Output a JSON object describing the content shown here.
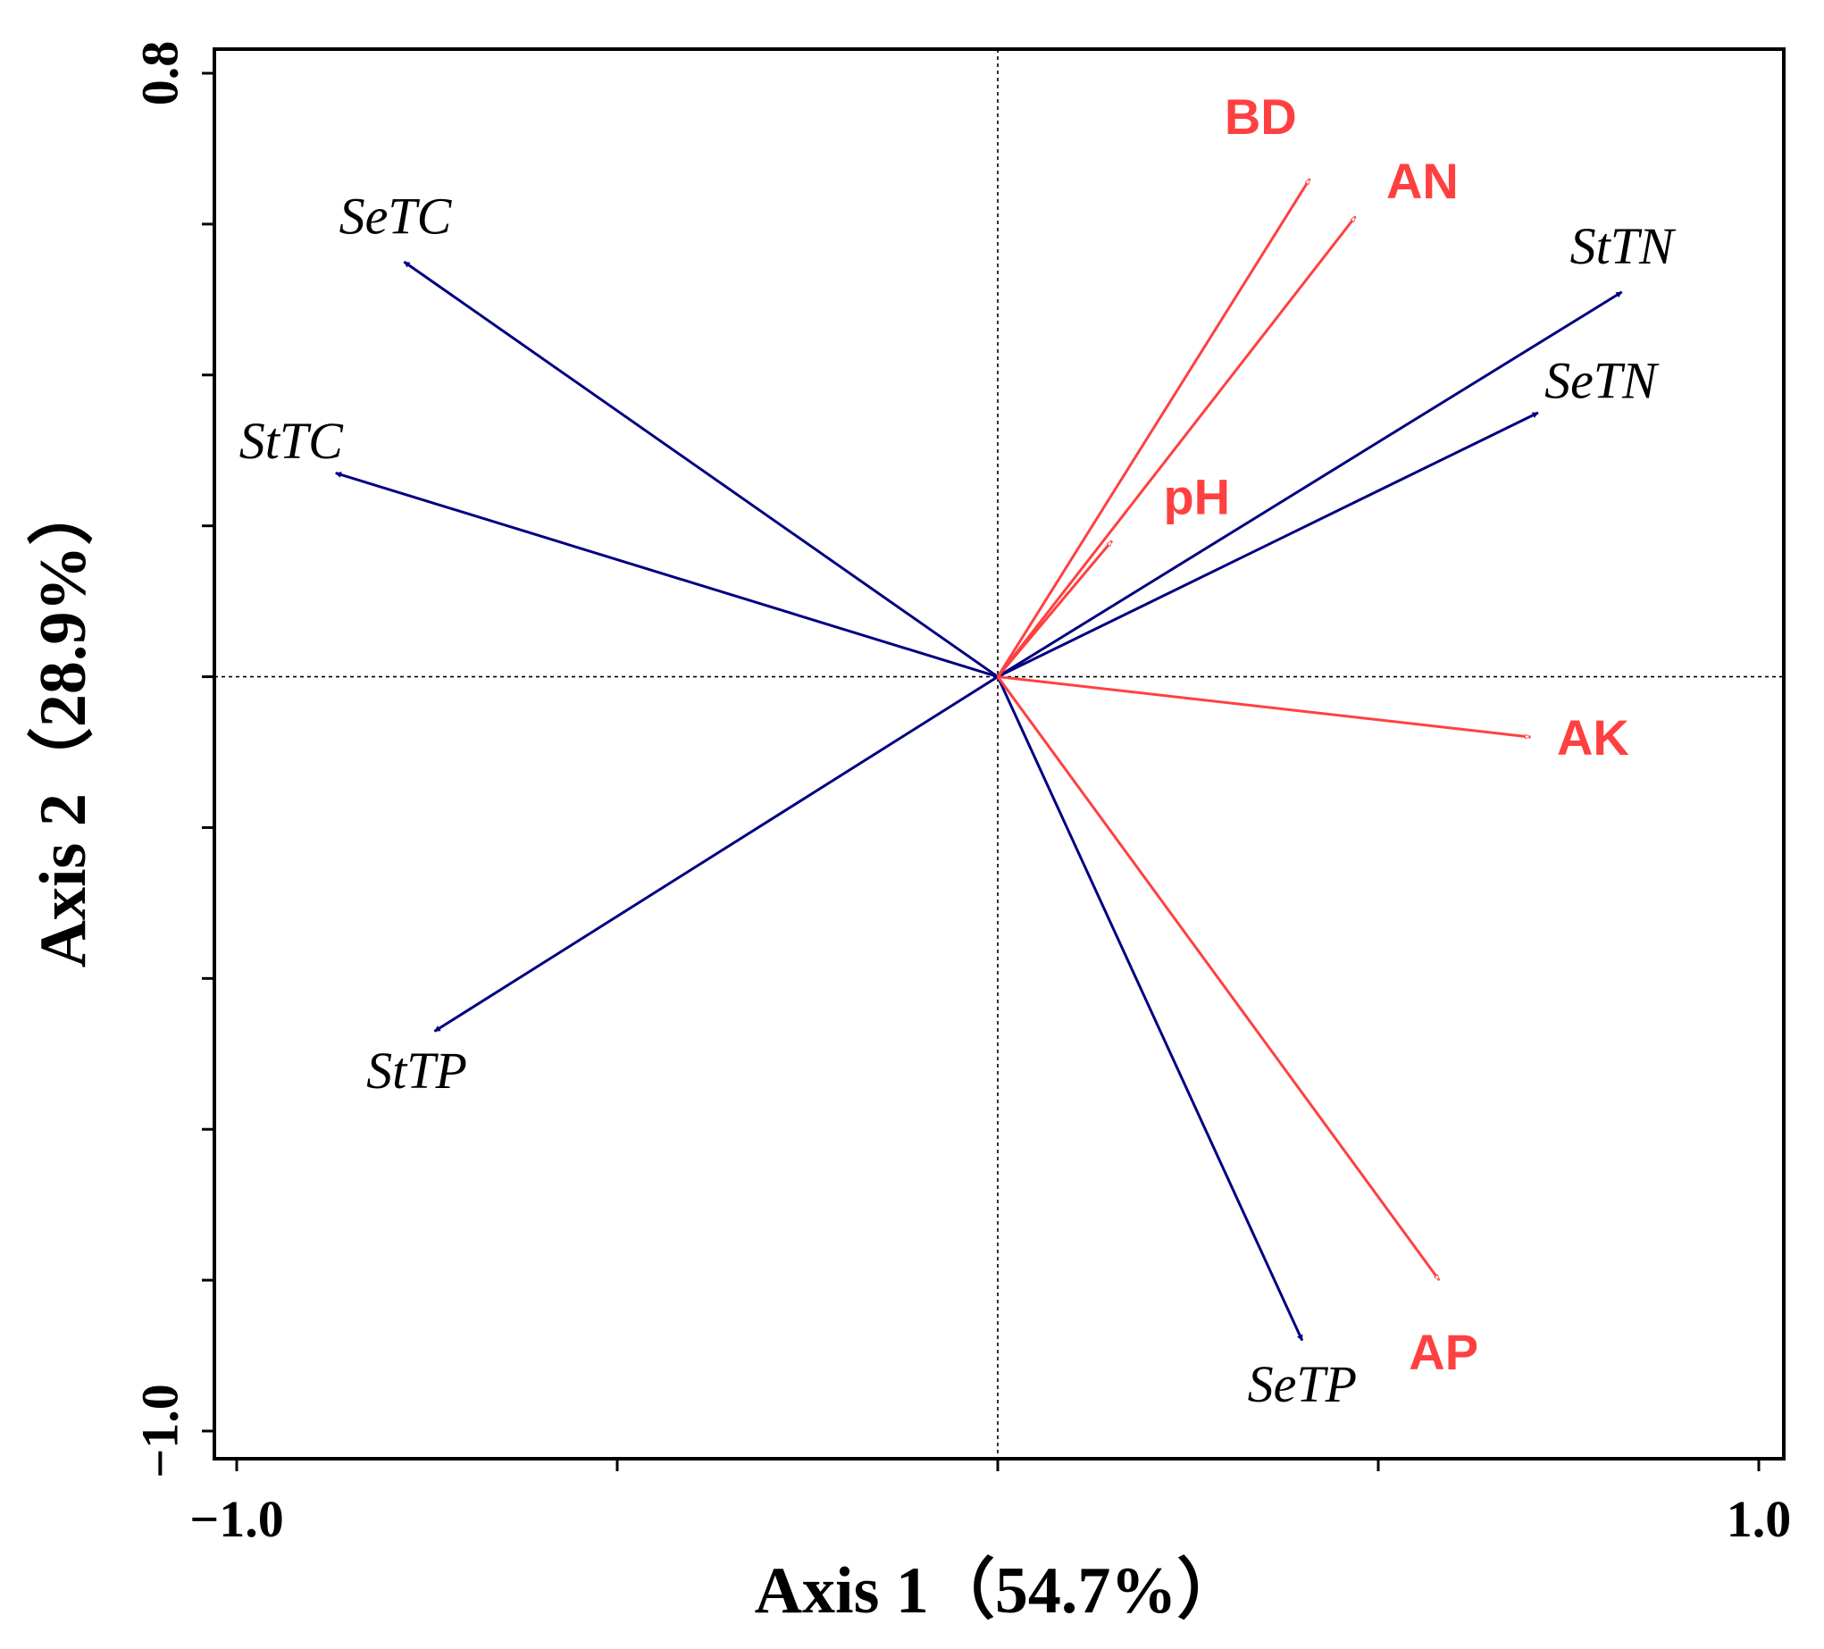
{
  "chart_data": {
    "type": "biplot",
    "xlabel": "Axis 1（54.7%）",
    "ylabel": "Axis 2（28.9%）",
    "xlim": [
      -1.0,
      1.0
    ],
    "ylim": [
      -1.0,
      0.8
    ],
    "xtick_labels": [
      {
        "value": -1.0,
        "text": "−1.0"
      },
      {
        "value": 1.0,
        "text": "1.0"
      }
    ],
    "ytick_labels": [
      {
        "value": 0.8,
        "text": "0.8"
      },
      {
        "value": -1.0,
        "text": "−1.0"
      }
    ],
    "xticks": [
      -1.0,
      -0.5,
      0.0,
      0.5,
      1.0
    ],
    "yticks": [
      0.8,
      0.6,
      0.4,
      0.2,
      0.0,
      -0.2,
      -0.4,
      -0.6,
      -0.8,
      -1.0
    ],
    "origin_lines": true,
    "species_color": "#000080",
    "env_color": "#FF4040",
    "species_vectors": [
      {
        "name": "SeTC",
        "x": -0.78,
        "y": 0.55
      },
      {
        "name": "StTC",
        "x": -0.87,
        "y": 0.27
      },
      {
        "name": "StTP",
        "x": -0.74,
        "y": -0.47
      },
      {
        "name": "StTN",
        "x": 0.82,
        "y": 0.51
      },
      {
        "name": "SeTN",
        "x": 0.71,
        "y": 0.35
      },
      {
        "name": "SeTP",
        "x": 0.4,
        "y": -0.88
      }
    ],
    "env_vectors": [
      {
        "name": "BD",
        "x": 0.41,
        "y": 0.66
      },
      {
        "name": "AN",
        "x": 0.47,
        "y": 0.61
      },
      {
        "name": "pH",
        "x": 0.15,
        "y": 0.18
      },
      {
        "name": "AK",
        "x": 0.7,
        "y": -0.08
      },
      {
        "name": "AP",
        "x": 0.58,
        "y": -0.8
      }
    ]
  }
}
